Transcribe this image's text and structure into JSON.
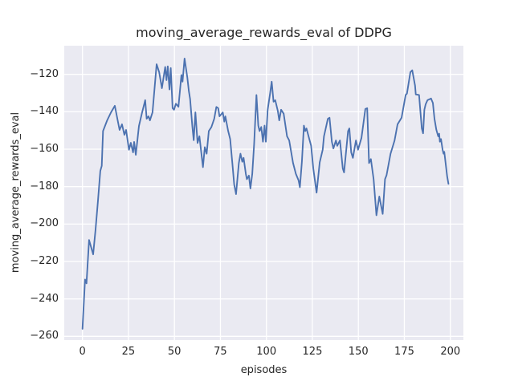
{
  "figure": {
    "background": "#FFFFFF"
  },
  "chart_data": {
    "type": "line",
    "title": "moving_average_rewards_eval of DDPG",
    "xlabel": "episodes",
    "ylabel": "moving_average_rewards_eval",
    "grid": true,
    "legend_position": "none",
    "xlim": [
      -9.9,
      207.1
    ],
    "ylim": [
      -262.0,
      -104.7
    ],
    "x_ticks": [
      0,
      25,
      50,
      75,
      100,
      125,
      150,
      175,
      200
    ],
    "x_tick_labels": [
      "0",
      "25",
      "50",
      "75",
      "100",
      "125",
      "150",
      "175",
      "200"
    ],
    "y_ticks": [
      -120,
      -140,
      -160,
      -180,
      -200,
      -220,
      -240,
      -260
    ],
    "y_tick_labels": [
      "−120",
      "−140",
      "−160",
      "−180",
      "−200",
      "−220",
      "−240",
      "−260"
    ],
    "style": {
      "plot_background": "#EAEAF2",
      "grid_color": "#FFFFFF",
      "text_color": "#262626",
      "line_color": "#4C72B0",
      "line_width": 1.9
    },
    "series": [
      {
        "name": "moving_average_rewards_eval",
        "color": "#4C72B0",
        "points": [
          [
            0,
            -256.0
          ],
          [
            1.4,
            -229.6
          ],
          [
            2.2,
            -231.7
          ],
          [
            3.6,
            -208.5
          ],
          [
            5.8,
            -216.2
          ],
          [
            7.1,
            -203.3
          ],
          [
            8.4,
            -188.0
          ],
          [
            9.7,
            -171.6
          ],
          [
            10.5,
            -168.9
          ],
          [
            11.2,
            -150.3
          ],
          [
            13.4,
            -144.6
          ],
          [
            15.5,
            -140.3
          ],
          [
            17.6,
            -136.8
          ],
          [
            19.3,
            -145.4
          ],
          [
            20.2,
            -149.7
          ],
          [
            21.5,
            -146.7
          ],
          [
            22.8,
            -152.3
          ],
          [
            23.7,
            -149.7
          ],
          [
            25.3,
            -160.3
          ],
          [
            26.3,
            -156.6
          ],
          [
            27.5,
            -161.7
          ],
          [
            28.1,
            -156.1
          ],
          [
            29.0,
            -163.0
          ],
          [
            30.7,
            -147.6
          ],
          [
            32.3,
            -140.8
          ],
          [
            34.1,
            -133.8
          ],
          [
            34.9,
            -143.7
          ],
          [
            35.9,
            -142.4
          ],
          [
            36.7,
            -144.6
          ],
          [
            38.1,
            -140.3
          ],
          [
            40.3,
            -114.6
          ],
          [
            41.7,
            -118.9
          ],
          [
            43.2,
            -127.4
          ],
          [
            45.0,
            -116.0
          ],
          [
            45.7,
            -123.1
          ],
          [
            46.4,
            -115.7
          ],
          [
            47.3,
            -128.1
          ],
          [
            48.0,
            -116.6
          ],
          [
            49.0,
            -138.1
          ],
          [
            49.8,
            -138.9
          ],
          [
            50.8,
            -135.7
          ],
          [
            52.2,
            -137.3
          ],
          [
            53.8,
            -120.3
          ],
          [
            54.4,
            -123.9
          ],
          [
            55.5,
            -111.5
          ],
          [
            57.0,
            -121.5
          ],
          [
            57.8,
            -128.8
          ],
          [
            58.5,
            -133.1
          ],
          [
            59.7,
            -147.4
          ],
          [
            60.5,
            -155.2
          ],
          [
            61.4,
            -140.3
          ],
          [
            62.6,
            -156.7
          ],
          [
            63.6,
            -153.1
          ],
          [
            64.6,
            -161.7
          ],
          [
            65.5,
            -169.6
          ],
          [
            66.5,
            -158.9
          ],
          [
            67.5,
            -162.4
          ],
          [
            68.7,
            -150.3
          ],
          [
            70.1,
            -148.2
          ],
          [
            71.6,
            -143.8
          ],
          [
            72.8,
            -137.4
          ],
          [
            73.8,
            -138.1
          ],
          [
            74.5,
            -142.4
          ],
          [
            75.7,
            -141.0
          ],
          [
            76.3,
            -140.3
          ],
          [
            77.1,
            -145.3
          ],
          [
            77.7,
            -142.4
          ],
          [
            79.2,
            -150.3
          ],
          [
            80.3,
            -154.6
          ],
          [
            81.5,
            -167.4
          ],
          [
            82.5,
            -178.9
          ],
          [
            83.5,
            -184.0
          ],
          [
            85.0,
            -167.4
          ],
          [
            85.9,
            -162.4
          ],
          [
            86.9,
            -166.7
          ],
          [
            87.6,
            -164.6
          ],
          [
            88.8,
            -173.2
          ],
          [
            89.4,
            -176.0
          ],
          [
            90.5,
            -174.1
          ],
          [
            91.3,
            -181.0
          ],
          [
            92.3,
            -173.2
          ],
          [
            93.3,
            -157.4
          ],
          [
            94.6,
            -131.0
          ],
          [
            95.6,
            -147.4
          ],
          [
            96.3,
            -150.3
          ],
          [
            97.2,
            -148.1
          ],
          [
            98.1,
            -156.0
          ],
          [
            99.0,
            -147.4
          ],
          [
            99.7,
            -156.0
          ],
          [
            100.7,
            -138.9
          ],
          [
            102.0,
            -130.2
          ],
          [
            102.9,
            -123.9
          ],
          [
            103.9,
            -134.6
          ],
          [
            104.8,
            -133.8
          ],
          [
            106.2,
            -139.5
          ],
          [
            107.0,
            -144.6
          ],
          [
            108.0,
            -138.9
          ],
          [
            109.4,
            -141.0
          ],
          [
            111.2,
            -153.1
          ],
          [
            112.4,
            -155.3
          ],
          [
            114.5,
            -167.4
          ],
          [
            116.0,
            -173.2
          ],
          [
            117.5,
            -176.7
          ],
          [
            118.2,
            -180.3
          ],
          [
            119.3,
            -166.7
          ],
          [
            120.4,
            -147.4
          ],
          [
            121.1,
            -150.3
          ],
          [
            121.8,
            -148.9
          ],
          [
            123.3,
            -154.6
          ],
          [
            124.3,
            -158.2
          ],
          [
            125.5,
            -170.3
          ],
          [
            127.3,
            -183.2
          ],
          [
            129.0,
            -167.0
          ],
          [
            130.6,
            -160.3
          ],
          [
            131.3,
            -153.1
          ],
          [
            133.4,
            -143.8
          ],
          [
            134.3,
            -143.2
          ],
          [
            135.6,
            -156.0
          ],
          [
            136.4,
            -159.6
          ],
          [
            137.8,
            -155.3
          ],
          [
            138.5,
            -158.2
          ],
          [
            140.0,
            -155.3
          ],
          [
            141.5,
            -170.3
          ],
          [
            142.2,
            -172.4
          ],
          [
            144.4,
            -150.3
          ],
          [
            145.1,
            -148.9
          ],
          [
            146.1,
            -161.7
          ],
          [
            147.0,
            -164.6
          ],
          [
            148.7,
            -155.3
          ],
          [
            149.8,
            -160.3
          ],
          [
            151.7,
            -153.9
          ],
          [
            153.8,
            -138.5
          ],
          [
            154.8,
            -138.1
          ],
          [
            155.8,
            -167.4
          ],
          [
            156.8,
            -165.3
          ],
          [
            158.3,
            -176.0
          ],
          [
            159.8,
            -195.3
          ],
          [
            161.4,
            -185.3
          ],
          [
            163.2,
            -194.6
          ],
          [
            164.5,
            -176.0
          ],
          [
            165.3,
            -173.9
          ],
          [
            167.5,
            -162.4
          ],
          [
            169.7,
            -155.3
          ],
          [
            171.3,
            -146.7
          ],
          [
            173.5,
            -143.2
          ],
          [
            174.9,
            -135.3
          ],
          [
            175.7,
            -131.0
          ],
          [
            176.4,
            -130.3
          ],
          [
            178.3,
            -118.8
          ],
          [
            179.3,
            -117.8
          ],
          [
            180.8,
            -126.0
          ],
          [
            181.2,
            -130.7
          ],
          [
            183.0,
            -131.0
          ],
          [
            183.7,
            -139.6
          ],
          [
            184.5,
            -148.9
          ],
          [
            185.2,
            -151.5
          ],
          [
            185.9,
            -138.9
          ],
          [
            186.6,
            -136.0
          ],
          [
            187.6,
            -133.8
          ],
          [
            189.5,
            -132.9
          ],
          [
            190.5,
            -135.3
          ],
          [
            191.4,
            -143.8
          ],
          [
            192.4,
            -149.6
          ],
          [
            193.4,
            -153.1
          ],
          [
            193.9,
            -151.7
          ],
          [
            194.3,
            -156.0
          ],
          [
            194.9,
            -154.6
          ],
          [
            195.8,
            -160.3
          ],
          [
            196.3,
            -162.4
          ],
          [
            196.7,
            -161.4
          ],
          [
            198.3,
            -174.6
          ],
          [
            199.0,
            -178.5
          ]
        ]
      }
    ]
  }
}
